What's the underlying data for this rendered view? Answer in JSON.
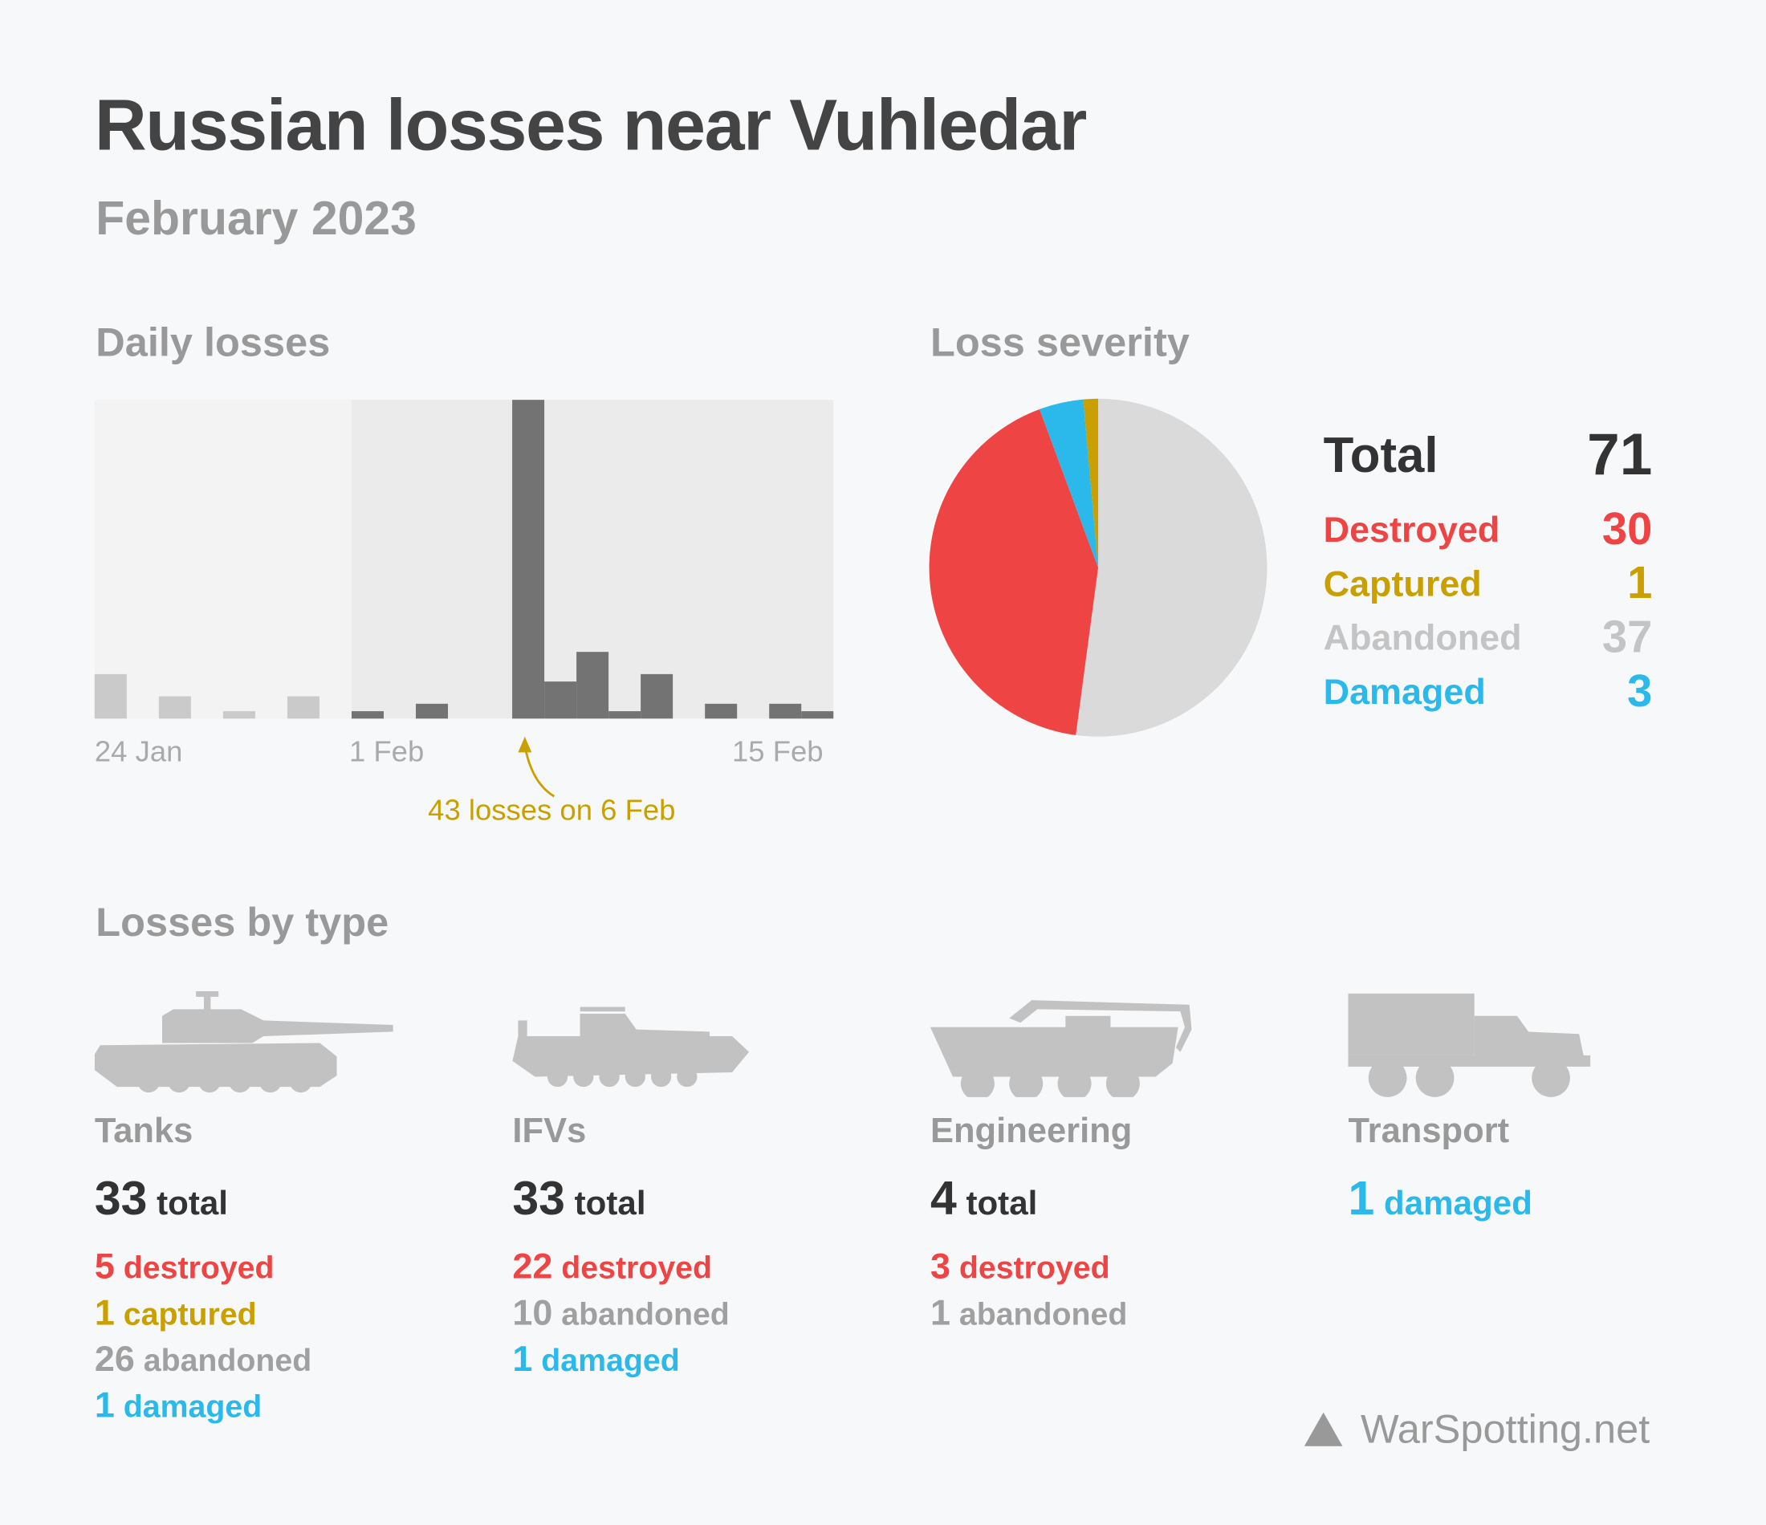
{
  "title": "Russian losses near Vuhledar",
  "subtitle": "February 2023",
  "colors": {
    "destroyed": "#ef4444",
    "captured": "#c9a000",
    "abandoned": "#c4c4c4",
    "damaged": "#2bb8ea",
    "bar_feb": "#737373",
    "bar_jan": "#cacaca",
    "annotation": "#c9a000"
  },
  "chart_data": [
    {
      "type": "bar",
      "title": "Daily losses",
      "categories": [
        "24 Jan",
        "25 Jan",
        "26 Jan",
        "27 Jan",
        "28 Jan",
        "29 Jan",
        "30 Jan",
        "31 Jan",
        "1 Feb",
        "2 Feb",
        "3 Feb",
        "4 Feb",
        "5 Feb",
        "6 Feb",
        "7 Feb",
        "8 Feb",
        "9 Feb",
        "10 Feb",
        "11 Feb",
        "12 Feb",
        "13 Feb",
        "14 Feb",
        "15 Feb"
      ],
      "values": [
        6,
        0,
        3,
        0,
        1,
        0,
        3,
        0,
        1,
        0,
        2,
        0,
        0,
        43,
        5,
        9,
        1,
        6,
        0,
        2,
        0,
        2,
        1
      ],
      "tick_labels": [
        "24 Jan",
        "1 Feb",
        "15 Feb"
      ],
      "ylim": [
        0,
        43
      ],
      "annotation": "43 losses on 6 Feb",
      "grid": false
    },
    {
      "type": "pie",
      "title": "Loss severity",
      "total_label": "Total",
      "total": 71,
      "slices": [
        {
          "name": "Abandoned",
          "value": 37,
          "color": "#dadada",
          "text_color": "#c4c4c4"
        },
        {
          "name": "Destroyed",
          "value": 30,
          "color": "#ef4444",
          "text_color": "#ef4444"
        },
        {
          "name": "Damaged",
          "value": 3,
          "color": "#2bb8ea",
          "text_color": "#2bb8ea"
        },
        {
          "name": "Captured",
          "value": 1,
          "color": "#c9a000",
          "text_color": "#c9a000"
        }
      ],
      "legend_order": [
        "Destroyed",
        "Captured",
        "Abandoned",
        "Damaged"
      ]
    }
  ],
  "types_title": "Losses by type",
  "types": [
    {
      "name": "Tanks",
      "icon": "tank-icon",
      "total": "33",
      "total_label": "total",
      "stats": [
        {
          "n": "5",
          "label": "destroyed",
          "kind": "destroyed"
        },
        {
          "n": "1",
          "label": "captured",
          "kind": "captured"
        },
        {
          "n": "26",
          "label": "abandoned",
          "kind": "abandoned"
        },
        {
          "n": "1",
          "label": "damaged",
          "kind": "damaged"
        }
      ]
    },
    {
      "name": "IFVs",
      "icon": "ifv-icon",
      "total": "33",
      "total_label": "total",
      "stats": [
        {
          "n": "22",
          "label": "destroyed",
          "kind": "destroyed"
        },
        {
          "n": "10",
          "label": "abandoned",
          "kind": "abandoned"
        },
        {
          "n": "1",
          "label": "damaged",
          "kind": "damaged"
        }
      ]
    },
    {
      "name": "Engineering",
      "icon": "engineering-vehicle-icon",
      "total": "4",
      "total_label": "total",
      "stats": [
        {
          "n": "3",
          "label": "destroyed",
          "kind": "destroyed"
        },
        {
          "n": "1",
          "label": "abandoned",
          "kind": "abandoned"
        }
      ]
    },
    {
      "name": "Transport",
      "icon": "truck-icon",
      "total": "1",
      "total_label": "damaged",
      "total_kind": "damaged",
      "stats": []
    }
  ],
  "footer": {
    "brand": "WarSpotting.net",
    "icon": "triangle-logo-icon"
  }
}
